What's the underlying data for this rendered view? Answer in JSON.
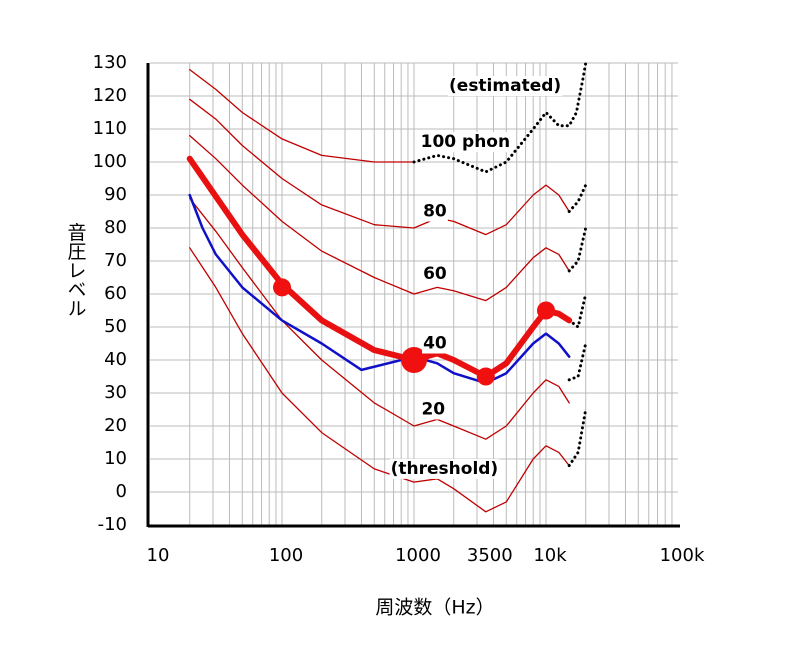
{
  "chart_data": {
    "type": "line",
    "xlog": true,
    "xlabel": "周波数（Hz）",
    "ylabel": "音圧レベル",
    "xlim": [
      10,
      100000
    ],
    "ylim": [
      -10,
      130
    ],
    "xticks": [
      10,
      100,
      1000,
      3500,
      {
        "value": 10000,
        "label": "10k"
      },
      {
        "value": 100000,
        "label": "100k"
      }
    ],
    "xgrid": [
      20,
      30,
      40,
      50,
      60,
      70,
      80,
      90,
      100,
      200,
      300,
      400,
      500,
      600,
      700,
      800,
      900,
      1000,
      2000,
      3000,
      4000,
      5000,
      6000,
      7000,
      8000,
      9000,
      10000,
      20000,
      30000,
      40000,
      50000,
      60000,
      70000,
      80000,
      90000
    ],
    "yticks": [
      -10,
      0,
      10,
      20,
      30,
      40,
      50,
      60,
      70,
      80,
      90,
      100,
      110,
      120,
      130
    ],
    "grid": true,
    "series": [
      {
        "color": "#c00000",
        "width": 1.3,
        "dashed": false,
        "x": [
          20,
          31.5,
          50,
          100,
          200,
          500,
          1000
        ],
        "values": [
          128,
          122,
          115,
          107,
          102,
          100,
          100
        ]
      },
      {
        "color": "#c00000",
        "width": 1.3,
        "dashed": false,
        "x": [
          20,
          31.5,
          50,
          100,
          200,
          500,
          1000,
          1500,
          2000,
          3500,
          5000,
          8000,
          10000,
          12500,
          15000
        ],
        "values": [
          119,
          113,
          105,
          95,
          87,
          81,
          80,
          83,
          82,
          78,
          81,
          90,
          93,
          90,
          85
        ]
      },
      {
        "color": "#c00000",
        "width": 1.3,
        "dashed": false,
        "x": [
          20,
          31.5,
          50,
          100,
          200,
          500,
          1000,
          1500,
          2000,
          3500,
          5000,
          8000,
          10000,
          12500,
          15000
        ],
        "values": [
          108,
          101,
          93,
          82,
          73,
          65,
          60,
          62,
          61,
          58,
          62,
          71,
          74,
          72,
          67
        ]
      },
      {
        "color": "#c00000",
        "width": 1.3,
        "dashed": false,
        "x": [
          20,
          31.5,
          50,
          100,
          200,
          500,
          1000,
          1500,
          2000,
          3500,
          5000,
          8000,
          10000,
          12500,
          15000
        ],
        "values": [
          89,
          79,
          68,
          52,
          40,
          27,
          20,
          22,
          20,
          16,
          20,
          30,
          34,
          32,
          27
        ]
      },
      {
        "color": "#c00000",
        "width": 1.3,
        "dashed": false,
        "x": [
          20,
          31.5,
          50,
          100,
          200,
          500,
          1000,
          1500,
          2000,
          3500,
          5000,
          8000,
          10000,
          12500,
          15000
        ],
        "values": [
          74,
          62,
          48,
          30,
          18,
          7,
          3,
          4,
          1,
          -6,
          -3,
          10,
          14,
          12,
          8
        ]
      },
      {
        "color": "#000000",
        "width": 3,
        "dashed": true,
        "x": [
          1000,
          1500,
          2000,
          3500,
          5000,
          8000,
          10000,
          12500,
          15000,
          17000,
          19000,
          20000
        ],
        "values": [
          100,
          102,
          101,
          97,
          100,
          110,
          115,
          111,
          111,
          115,
          125,
          130
        ]
      },
      {
        "color": "#000000",
        "width": 3,
        "dashed": true,
        "x": [
          15000,
          17500,
          20000
        ],
        "values": [
          85,
          88,
          93
        ]
      },
      {
        "color": "#000000",
        "width": 3,
        "dashed": true,
        "x": [
          15000,
          17500,
          20000
        ],
        "values": [
          67,
          70,
          80
        ]
      },
      {
        "color": "#000000",
        "width": 3,
        "dashed": true,
        "x": [
          15000,
          17500,
          20000
        ],
        "values": [
          52,
          50,
          60
        ]
      },
      {
        "color": "#000000",
        "width": 3,
        "dashed": true,
        "x": [
          15000,
          17500,
          20000
        ],
        "values": [
          34,
          35,
          45
        ]
      },
      {
        "color": "#000000",
        "width": 3,
        "dashed": true,
        "x": [
          15000,
          17500,
          20000
        ],
        "values": [
          8,
          12,
          25
        ]
      },
      {
        "color": "#1010c8",
        "width": 2.5,
        "dashed": false,
        "x": [
          20,
          25,
          31.5,
          50,
          100,
          200,
          400,
          800,
          1000,
          1500,
          2000,
          3500,
          5000,
          8000,
          10000,
          12500,
          15000
        ],
        "values": [
          90,
          80,
          72,
          62,
          52,
          45,
          37,
          40,
          41,
          39,
          36,
          33,
          36,
          45,
          48,
          45,
          41
        ]
      },
      {
        "color": "#e81010",
        "width": 6,
        "dashed": false,
        "x": [
          20,
          50,
          100,
          200,
          500,
          1000,
          1500,
          2000,
          3500,
          5000,
          8000,
          10000,
          12500,
          15000
        ],
        "values": [
          101,
          78,
          63,
          52,
          43,
          40,
          42,
          40,
          35,
          39,
          50,
          55,
          54,
          52
        ]
      }
    ],
    "points": {
      "color": "#f01010",
      "x": [
        100,
        1000,
        3500,
        10000
      ],
      "values": [
        62,
        40,
        35,
        55
      ],
      "sizes": [
        9,
        13,
        9,
        9
      ]
    },
    "annotations": [
      {
        "text": "(estimated)",
        "x": 4900,
        "y": 123
      },
      {
        "text": "100 phon",
        "x": 2450,
        "y": 106
      },
      {
        "text": "80",
        "x": 1440,
        "y": 85
      },
      {
        "text": "60",
        "x": 1440,
        "y": 66
      },
      {
        "text": "40",
        "x": 1440,
        "y": 45
      },
      {
        "text": "20",
        "x": 1400,
        "y": 25
      },
      {
        "text": "(threshold)",
        "x": 1700,
        "y": 7
      }
    ]
  }
}
